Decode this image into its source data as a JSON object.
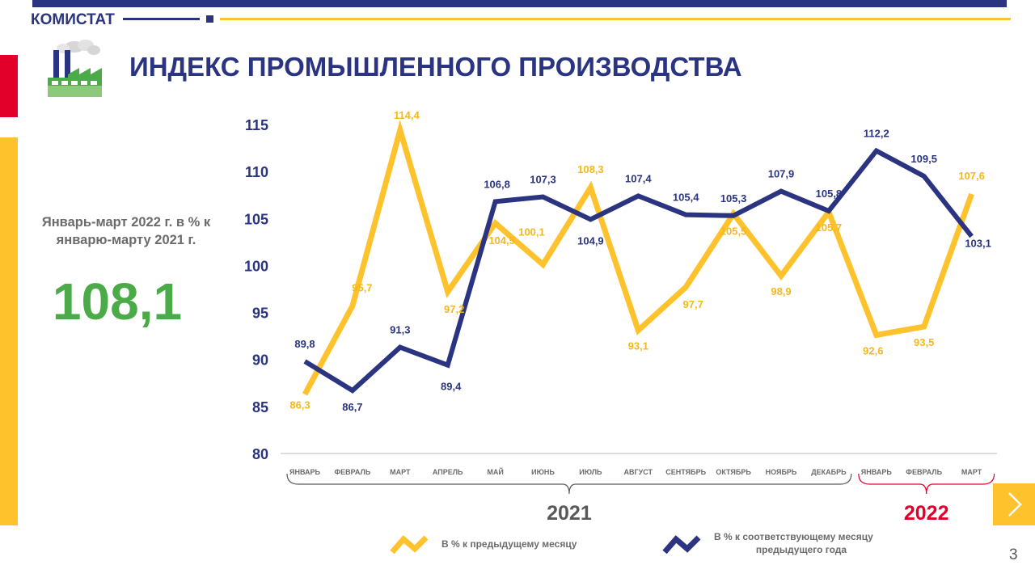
{
  "header": {
    "brand": "КОМИСТАТ",
    "title": "ИНДЕКС ПРОМЫШЛЕННОГО ПРОИЗВОДСТВА"
  },
  "kpi": {
    "label": "Январь-март 2022 г. в % к январю-марту 2021 г.",
    "value": "108,1"
  },
  "page_number": "3",
  "colors": {
    "navy": "#2a3480",
    "yellow": "#fec22d",
    "red": "#e2002b",
    "green": "#4aab48"
  },
  "icons": {
    "factory": "factory-icon",
    "next": "chevron-right-icon"
  },
  "chart_data": {
    "type": "line",
    "categories": [
      "ЯНВАРЬ",
      "ФЕВРАЛЬ",
      "МАРТ",
      "АПРЕЛЬ",
      "МАЙ",
      "ИЮНЬ",
      "ИЮЛЬ",
      "АВГУСТ",
      "СЕНТЯБРЬ",
      "ОКТЯБРЬ",
      "НОЯБРЬ",
      "ДЕКАБРЬ",
      "ЯНВАРЬ",
      "ФЕВРАЛЬ",
      "МАРТ"
    ],
    "year_groups": [
      {
        "label": "2021",
        "start": 0,
        "end": 11,
        "color": "#595959"
      },
      {
        "label": "2022",
        "start": 12,
        "end": 14,
        "color": "#e2002b"
      }
    ],
    "ylim": [
      80,
      115
    ],
    "yticks": [
      115,
      110,
      105,
      100,
      95,
      90,
      85,
      80
    ],
    "grid": false,
    "legend_position": "bottom",
    "series": [
      {
        "name": "В %  к предыдущему  месяцу",
        "color": "#fec22d",
        "values": [
          86.3,
          95.7,
          114.4,
          97.2,
          104.5,
          100.1,
          108.3,
          93.1,
          97.7,
          105.5,
          98.9,
          105.7,
          92.6,
          93.5,
          107.6
        ],
        "labels": [
          "86,3",
          "95,7",
          "114,4",
          "97,2",
          "104,5",
          "100,1",
          "108,3",
          "93,1",
          "97,7",
          "105,5",
          "98,9",
          "105,7",
          "92,6",
          "93,5",
          "107,6"
        ]
      },
      {
        "name": "В %  к соответствующему  месяцу предыдущего  года",
        "color": "#2a3480",
        "values": [
          89.8,
          86.7,
          91.3,
          89.4,
          106.8,
          107.3,
          104.9,
          107.4,
          105.4,
          105.3,
          107.9,
          105.8,
          112.2,
          109.5,
          103.1
        ],
        "labels": [
          "89,8",
          "86,7",
          "91,3",
          "89,4",
          "106,8",
          "107,3",
          "104,9",
          "107,4",
          "105,4",
          "105,3",
          "107,9",
          "105,8",
          "112,2",
          "109,5",
          "103,1"
        ]
      }
    ]
  }
}
